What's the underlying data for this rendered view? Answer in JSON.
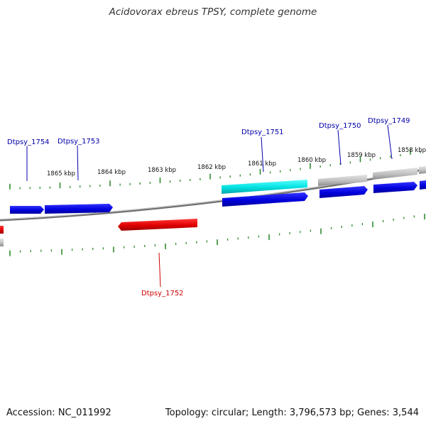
{
  "title": "Acidovorax ebreus TPSY, complete genome",
  "accession": "Accession: NC_011992",
  "summary": "Topology: circular; Length: 3,796,573 bp; Genes: 3,544",
  "colors": {
    "backbone": "#7a7a7a",
    "tick": "#2e8b2e",
    "forward_gene": "#0000dd",
    "reverse_gene": "#dd0000",
    "rna_gene": "#00dddd",
    "other_feature": "#b8b8b8",
    "label_forward": "#0000aa",
    "label_reverse": "#cc0000"
  },
  "ticks": [
    "1865 kbp",
    "1864 kbp",
    "1863 kbp",
    "1862 kbp",
    "1861 kbp",
    "1860 kbp",
    "1859 kbp",
    "1858 kbp"
  ],
  "genes": [
    {
      "name": "Dtpsy_1754",
      "strand": "forward",
      "kind": "cds"
    },
    {
      "name": "Dtpsy_1753",
      "strand": "forward",
      "kind": "cds"
    },
    {
      "name": "Dtpsy_1752",
      "strand": "reverse",
      "kind": "cds"
    },
    {
      "name": "Dtpsy_1751",
      "strand": "forward",
      "kind": "cds"
    },
    {
      "name": "Dtpsy_1750",
      "strand": "forward",
      "kind": "cds"
    },
    {
      "name": "Dtpsy_1749",
      "strand": "forward",
      "kind": "cds"
    }
  ]
}
